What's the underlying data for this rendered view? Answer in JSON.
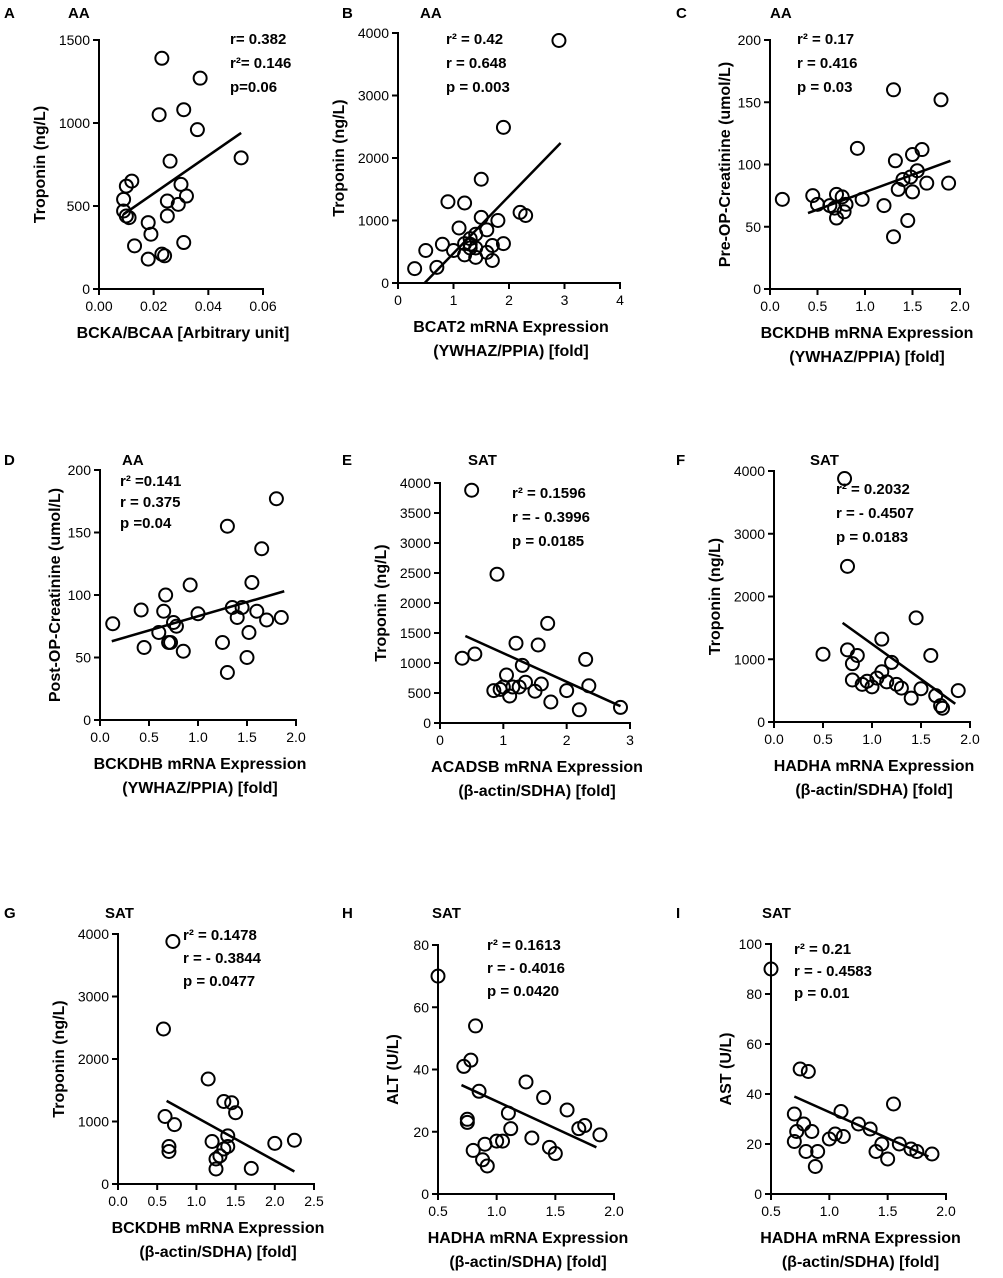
{
  "figure_title": "",
  "chart_data": [
    {
      "panel": "A",
      "type": "scatter",
      "group": "AA",
      "xlabel": [
        "BCKA/BCAA [Arbitrary unit]"
      ],
      "ylabel": "Troponin (ng/L)",
      "xlim": [
        0,
        0.06
      ],
      "ylim": [
        0,
        1500
      ],
      "xticks": [
        0,
        0.02,
        0.04,
        0.06
      ],
      "xtick_labels": [
        "0.00",
        "0.02",
        "0.04",
        "0.06"
      ],
      "yticks": [
        0,
        500,
        1000,
        1500
      ],
      "ytick_labels": [
        "0",
        "500",
        "1000",
        "1500"
      ],
      "stats": [
        "r= 0.382",
        "r²= 0.146",
        "p=0.06"
      ],
      "points": [
        [
          0.009,
          540
        ],
        [
          0.01,
          620
        ],
        [
          0.012,
          650
        ],
        [
          0.009,
          470
        ],
        [
          0.01,
          440
        ],
        [
          0.011,
          430
        ],
        [
          0.013,
          260
        ],
        [
          0.018,
          400
        ],
        [
          0.018,
          180
        ],
        [
          0.019,
          330
        ],
        [
          0.022,
          1050
        ],
        [
          0.023,
          1390
        ],
        [
          0.023,
          210
        ],
        [
          0.024,
          200
        ],
        [
          0.025,
          530
        ],
        [
          0.025,
          440
        ],
        [
          0.026,
          770
        ],
        [
          0.029,
          510
        ],
        [
          0.03,
          630
        ],
        [
          0.031,
          1080
        ],
        [
          0.032,
          560
        ],
        [
          0.031,
          280
        ],
        [
          0.036,
          960
        ],
        [
          0.037,
          1270
        ],
        [
          0.052,
          790
        ]
      ],
      "fit": [
        [
          0.009,
          450
        ],
        [
          0.052,
          940
        ]
      ]
    },
    {
      "panel": "B",
      "type": "scatter",
      "group": "AA",
      "xlabel": [
        "BCAT2 mRNA Expression",
        "(YWHAZ/PPIA) [fold]"
      ],
      "ylabel": "Troponin (ng/L)",
      "xlim": [
        0,
        4
      ],
      "ylim": [
        0,
        4000
      ],
      "xticks": [
        0,
        1,
        2,
        3,
        4
      ],
      "xtick_labels": [
        "0",
        "1",
        "2",
        "3",
        "4"
      ],
      "yticks": [
        0,
        1000,
        2000,
        3000,
        4000
      ],
      "ytick_labels": [
        "0",
        "1000",
        "2000",
        "3000",
        "4000"
      ],
      "stats": [
        "r² =  0.42",
        "r  =  0.648",
        "p  =  0.003"
      ],
      "points": [
        [
          0.3,
          230
        ],
        [
          0.5,
          520
        ],
        [
          0.7,
          250
        ],
        [
          0.8,
          620
        ],
        [
          0.9,
          1300
        ],
        [
          1.0,
          520
        ],
        [
          1.1,
          880
        ],
        [
          1.2,
          450
        ],
        [
          1.2,
          630
        ],
        [
          1.2,
          1280
        ],
        [
          1.3,
          560
        ],
        [
          1.3,
          710
        ],
        [
          1.3,
          620
        ],
        [
          1.4,
          780
        ],
        [
          1.4,
          410
        ],
        [
          1.4,
          560
        ],
        [
          1.5,
          1050
        ],
        [
          1.5,
          1660
        ],
        [
          1.6,
          850
        ],
        [
          1.6,
          490
        ],
        [
          1.7,
          600
        ],
        [
          1.7,
          360
        ],
        [
          1.8,
          1000
        ],
        [
          1.9,
          630
        ],
        [
          1.9,
          2490
        ],
        [
          2.2,
          1130
        ],
        [
          2.3,
          1080
        ],
        [
          2.9,
          3880
        ]
      ],
      "fit": [
        [
          0.48,
          0
        ],
        [
          2.93,
          2240
        ]
      ]
    },
    {
      "panel": "C",
      "type": "scatter",
      "group": "AA",
      "xlabel": [
        "BCKDHB mRNA Expression",
        "(YWHAZ/PPIA) [fold]"
      ],
      "ylabel": "Pre-OP-Creatinine (umol/L)",
      "xlim": [
        0,
        2.0
      ],
      "ylim": [
        0,
        200
      ],
      "xticks": [
        0,
        0.5,
        1.0,
        1.5,
        2.0
      ],
      "xtick_labels": [
        "0.0",
        "0.5",
        "1.0",
        "1.5",
        "2.0"
      ],
      "yticks": [
        0,
        50,
        100,
        150,
        200
      ],
      "ytick_labels": [
        "0",
        "50",
        "100",
        "150",
        "200"
      ],
      "stats": [
        "r² = 0.17",
        "r  =  0.416",
        "p  =  0.03"
      ],
      "points": [
        [
          0.13,
          72
        ],
        [
          0.45,
          75
        ],
        [
          0.5,
          68
        ],
        [
          0.63,
          67
        ],
        [
          0.68,
          65
        ],
        [
          0.7,
          76
        ],
        [
          0.7,
          57
        ],
        [
          0.76,
          74
        ],
        [
          0.78,
          62
        ],
        [
          0.8,
          68
        ],
        [
          0.92,
          113
        ],
        [
          0.97,
          72
        ],
        [
          1.2,
          67
        ],
        [
          1.3,
          160
        ],
        [
          1.3,
          42
        ],
        [
          1.32,
          103
        ],
        [
          1.35,
          80
        ],
        [
          1.4,
          88
        ],
        [
          1.45,
          55
        ],
        [
          1.48,
          90
        ],
        [
          1.5,
          78
        ],
        [
          1.5,
          108
        ],
        [
          1.55,
          95
        ],
        [
          1.6,
          112
        ],
        [
          1.65,
          85
        ],
        [
          1.8,
          152
        ],
        [
          1.88,
          85
        ]
      ],
      "fit": [
        [
          0.4,
          61
        ],
        [
          1.9,
          103
        ]
      ]
    },
    {
      "panel": "D",
      "type": "scatter",
      "group": "AA",
      "xlabel": [
        "BCKDHB mRNA Expression",
        "(YWHAZ/PPIA) [fold]"
      ],
      "ylabel": "Post-OP-Creatinine (umol/L)",
      "xlim": [
        0,
        2.0
      ],
      "ylim": [
        0,
        200
      ],
      "xticks": [
        0,
        0.5,
        1.0,
        1.5,
        2.0
      ],
      "xtick_labels": [
        "0.0",
        "0.5",
        "1.0",
        "1.5",
        "2.0"
      ],
      "yticks": [
        0,
        50,
        100,
        150,
        200
      ],
      "ytick_labels": [
        "0",
        "50",
        "100",
        "150",
        "200"
      ],
      "stats": [
        "r² =0.141",
        "r  = 0.375",
        "p  =0.04"
      ],
      "points": [
        [
          0.13,
          77
        ],
        [
          0.42,
          88
        ],
        [
          0.45,
          58
        ],
        [
          0.6,
          70
        ],
        [
          0.65,
          87
        ],
        [
          0.67,
          100
        ],
        [
          0.7,
          62
        ],
        [
          0.75,
          78
        ],
        [
          0.72,
          62
        ],
        [
          0.78,
          75
        ],
        [
          0.85,
          55
        ],
        [
          0.92,
          108
        ],
        [
          1.0,
          85
        ],
        [
          1.25,
          62
        ],
        [
          1.3,
          38
        ],
        [
          1.3,
          155
        ],
        [
          1.35,
          90
        ],
        [
          1.4,
          82
        ],
        [
          1.45,
          90
        ],
        [
          1.5,
          50
        ],
        [
          1.52,
          70
        ],
        [
          1.55,
          110
        ],
        [
          1.6,
          87
        ],
        [
          1.65,
          137
        ],
        [
          1.7,
          80
        ],
        [
          1.8,
          177
        ],
        [
          1.85,
          82
        ]
      ],
      "fit": [
        [
          0.12,
          63
        ],
        [
          1.88,
          103
        ]
      ]
    },
    {
      "panel": "E",
      "type": "scatter",
      "group": "SAT",
      "xlabel": [
        "ACADSB mRNA Expression",
        "(β-actin/SDHA) [fold]"
      ],
      "ylabel": "Troponin (ng/L)",
      "xlim": [
        0,
        3
      ],
      "ylim": [
        0,
        4000
      ],
      "xticks": [
        0,
        1,
        2,
        3
      ],
      "xtick_labels": [
        "0",
        "1",
        "2",
        "3"
      ],
      "yticks": [
        0,
        500,
        1000,
        1500,
        2000,
        2500,
        3000,
        3500,
        4000
      ],
      "ytick_labels": [
        "0",
        "500",
        "1000",
        "1500",
        "2000",
        "2500",
        "3000",
        "3500",
        "4000"
      ],
      "stats": [
        "r²   =   0.1596",
        "r    =  - 0.3996",
        "p    =   0.0185"
      ],
      "points": [
        [
          0.35,
          1080
        ],
        [
          0.5,
          3880
        ],
        [
          0.55,
          1150
        ],
        [
          0.85,
          540
        ],
        [
          0.9,
          2480
        ],
        [
          0.95,
          560
        ],
        [
          1.0,
          600
        ],
        [
          1.05,
          800
        ],
        [
          1.1,
          450
        ],
        [
          1.15,
          600
        ],
        [
          1.2,
          1330
        ],
        [
          1.25,
          600
        ],
        [
          1.3,
          960
        ],
        [
          1.35,
          680
        ],
        [
          1.5,
          530
        ],
        [
          1.55,
          1300
        ],
        [
          1.6,
          650
        ],
        [
          1.7,
          1660
        ],
        [
          1.75,
          350
        ],
        [
          2.0,
          540
        ],
        [
          2.2,
          220
        ],
        [
          2.3,
          1060
        ],
        [
          2.35,
          620
        ],
        [
          2.85,
          260
        ]
      ],
      "fit": [
        [
          0.4,
          1450
        ],
        [
          2.85,
          280
        ]
      ]
    },
    {
      "panel": "F",
      "type": "scatter",
      "group": "SAT",
      "xlabel": [
        "HADHA mRNA Expression",
        "(β-actin/SDHA) [fold]"
      ],
      "ylabel": "Troponin (ng/L)",
      "xlim": [
        0,
        2.0
      ],
      "ylim": [
        0,
        4000
      ],
      "xticks": [
        0,
        0.5,
        1.0,
        1.5,
        2.0
      ],
      "xtick_labels": [
        "0.0",
        "0.5",
        "1.0",
        "1.5",
        "2.0"
      ],
      "yticks": [
        0,
        1000,
        2000,
        3000,
        4000
      ],
      "ytick_labels": [
        "0",
        "1000",
        "2000",
        "3000",
        "4000"
      ],
      "stats": [
        "r²   =   0.2032",
        "r    =  - 0.4507",
        "p    =   0.0183"
      ],
      "points": [
        [
          0.5,
          1080
        ],
        [
          0.72,
          3880
        ],
        [
          0.75,
          2480
        ],
        [
          0.75,
          1150
        ],
        [
          0.8,
          670
        ],
        [
          0.8,
          930
        ],
        [
          0.85,
          1060
        ],
        [
          0.9,
          600
        ],
        [
          0.95,
          650
        ],
        [
          1.0,
          560
        ],
        [
          1.05,
          700
        ],
        [
          1.1,
          800
        ],
        [
          1.1,
          1320
        ],
        [
          1.15,
          640
        ],
        [
          1.2,
          950
        ],
        [
          1.25,
          600
        ],
        [
          1.3,
          540
        ],
        [
          1.4,
          380
        ],
        [
          1.45,
          1660
        ],
        [
          1.5,
          530
        ],
        [
          1.6,
          1060
        ],
        [
          1.65,
          420
        ],
        [
          1.7,
          260
        ],
        [
          1.72,
          220
        ],
        [
          1.88,
          500
        ]
      ],
      "fit": [
        [
          0.7,
          1580
        ],
        [
          1.85,
          290
        ]
      ]
    },
    {
      "panel": "G",
      "type": "scatter",
      "group": "SAT",
      "xlabel": [
        "BCKDHB mRNA Expression",
        "(β-actin/SDHA) [fold]"
      ],
      "ylabel": "Troponin (ng/L)",
      "xlim": [
        0,
        2.5
      ],
      "ylim": [
        0,
        4000
      ],
      "xticks": [
        0,
        0.5,
        1.0,
        1.5,
        2.0,
        2.5
      ],
      "xtick_labels": [
        "0.0",
        "0.5",
        "1.0",
        "1.5",
        "2.0",
        "2.5"
      ],
      "yticks": [
        0,
        1000,
        2000,
        3000,
        4000
      ],
      "ytick_labels": [
        "0",
        "1000",
        "2000",
        "3000",
        "4000"
      ],
      "stats": [
        "r²   =   0.1478",
        "r    =  - 0.3844",
        "p    =   0.0477"
      ],
      "points": [
        [
          0.58,
          2480
        ],
        [
          0.6,
          1080
        ],
        [
          0.65,
          600
        ],
        [
          0.65,
          520
        ],
        [
          0.7,
          3880
        ],
        [
          0.72,
          950
        ],
        [
          1.15,
          1680
        ],
        [
          1.2,
          680
        ],
        [
          1.25,
          400
        ],
        [
          1.25,
          240
        ],
        [
          1.3,
          450
        ],
        [
          1.35,
          560
        ],
        [
          1.35,
          1320
        ],
        [
          1.4,
          600
        ],
        [
          1.4,
          770
        ],
        [
          1.45,
          1300
        ],
        [
          1.5,
          1140
        ],
        [
          1.7,
          250
        ],
        [
          2.0,
          650
        ],
        [
          2.25,
          700
        ]
      ],
      "fit": [
        [
          0.62,
          1330
        ],
        [
          2.25,
          200
        ]
      ]
    },
    {
      "panel": "H",
      "type": "scatter",
      "group": "SAT",
      "xlabel": [
        "HADHA mRNA Expression",
        "(β-actin/SDHA) [fold]"
      ],
      "ylabel": "ALT (U/L)",
      "xlim": [
        0.5,
        2.0
      ],
      "ylim": [
        0,
        80
      ],
      "xticks": [
        0.5,
        1.0,
        1.5,
        2.0
      ],
      "xtick_labels": [
        "0.5",
        "1.0",
        "1.5",
        "2.0"
      ],
      "yticks": [
        0,
        20,
        40,
        60,
        80
      ],
      "ytick_labels": [
        "0",
        "20",
        "40",
        "60",
        "80"
      ],
      "stats": [
        "r²   =   0.1613",
        "r    =  - 0.4016",
        "p    =   0.0420"
      ],
      "points": [
        [
          0.5,
          70
        ],
        [
          0.72,
          41
        ],
        [
          0.75,
          23
        ],
        [
          0.75,
          24
        ],
        [
          0.78,
          43
        ],
        [
          0.8,
          14
        ],
        [
          0.82,
          54
        ],
        [
          0.85,
          33
        ],
        [
          0.88,
          11
        ],
        [
          0.9,
          16
        ],
        [
          0.92,
          9
        ],
        [
          1.0,
          17
        ],
        [
          1.05,
          17
        ],
        [
          1.1,
          26
        ],
        [
          1.12,
          21
        ],
        [
          1.25,
          36
        ],
        [
          1.3,
          18
        ],
        [
          1.4,
          31
        ],
        [
          1.45,
          15
        ],
        [
          1.5,
          13
        ],
        [
          1.6,
          27
        ],
        [
          1.7,
          21
        ],
        [
          1.75,
          22
        ],
        [
          1.88,
          19
        ]
      ],
      "fit": [
        [
          0.7,
          35
        ],
        [
          1.85,
          15
        ]
      ]
    },
    {
      "panel": "I",
      "type": "scatter",
      "group": "SAT",
      "xlabel": [
        "HADHA mRNA Expression",
        "(β-actin/SDHA) [fold]"
      ],
      "ylabel": "AST (U/L)",
      "xlim": [
        0.5,
        2.0
      ],
      "ylim": [
        0,
        100
      ],
      "xticks": [
        0.5,
        1.0,
        1.5,
        2.0
      ],
      "xtick_labels": [
        "0.5",
        "1.0",
        "1.5",
        "2.0"
      ],
      "yticks": [
        0,
        20,
        40,
        60,
        80,
        100
      ],
      "ytick_labels": [
        "0",
        "20",
        "40",
        "60",
        "80",
        "100"
      ],
      "stats": [
        "r²   =  0.21",
        "r    =  - 0.4583",
        "p    =  0.01"
      ],
      "points": [
        [
          0.5,
          90
        ],
        [
          0.7,
          32
        ],
        [
          0.7,
          21
        ],
        [
          0.72,
          25
        ],
        [
          0.75,
          50
        ],
        [
          0.78,
          28
        ],
        [
          0.8,
          17
        ],
        [
          0.82,
          49
        ],
        [
          0.85,
          25
        ],
        [
          0.88,
          11
        ],
        [
          0.9,
          17
        ],
        [
          1.0,
          22
        ],
        [
          1.05,
          24
        ],
        [
          1.1,
          33
        ],
        [
          1.12,
          23
        ],
        [
          1.25,
          28
        ],
        [
          1.35,
          26
        ],
        [
          1.4,
          17
        ],
        [
          1.45,
          20
        ],
        [
          1.5,
          14
        ],
        [
          1.55,
          36
        ],
        [
          1.6,
          20
        ],
        [
          1.7,
          18
        ],
        [
          1.75,
          17
        ],
        [
          1.88,
          16
        ]
      ],
      "fit": [
        [
          0.7,
          39
        ],
        [
          1.85,
          15
        ]
      ]
    }
  ]
}
